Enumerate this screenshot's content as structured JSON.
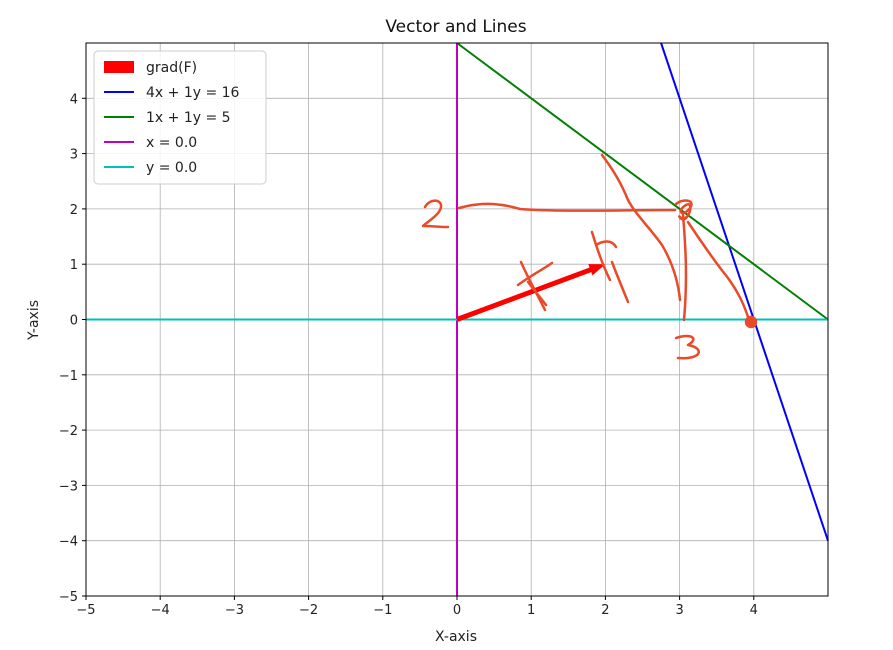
{
  "chart_data": {
    "type": "line",
    "title": "Vector and Lines",
    "xlabel": "X-axis",
    "ylabel": "Y-axis",
    "xlim": [
      -5,
      5
    ],
    "ylim": [
      -5,
      5
    ],
    "xticks": [
      -5,
      -4,
      -3,
      -2,
      -1,
      0,
      1,
      2,
      3,
      4
    ],
    "yticks": [
      -5,
      -4,
      -3,
      -2,
      -1,
      0,
      1,
      2,
      3,
      4
    ],
    "grid": true,
    "legend_position": "top-left",
    "series": [
      {
        "name": "grad(F)",
        "kind": "vector",
        "x": [
          0,
          2
        ],
        "y": [
          0,
          1
        ],
        "color": "#ff0000"
      },
      {
        "name": "4x + 1y = 16",
        "kind": "line",
        "x": [
          2.75,
          5
        ],
        "y": [
          5,
          -4
        ],
        "color": "#0000ff"
      },
      {
        "name": "1x + 1y = 5",
        "kind": "line",
        "x": [
          0,
          5
        ],
        "y": [
          5,
          0
        ],
        "color": "#008000"
      },
      {
        "name": "x = 0.0",
        "kind": "line",
        "x": [
          0,
          0
        ],
        "y": [
          -5,
          5
        ],
        "color": "#bf00bf"
      },
      {
        "name": "y = 0.0",
        "kind": "line",
        "x": [
          -5,
          5
        ],
        "y": [
          0,
          0
        ],
        "color": "#00bfbf"
      }
    ],
    "annotations": [
      {
        "text": "2",
        "style": "handwritten",
        "color": "#e84a2a"
      },
      {
        "text": "3",
        "style": "handwritten",
        "color": "#e84a2a"
      },
      {
        "text": "F",
        "style": "handwritten",
        "color": "#e84a2a"
      },
      {
        "text": "F",
        "style": "handwritten",
        "color": "#e84a2a"
      }
    ]
  }
}
